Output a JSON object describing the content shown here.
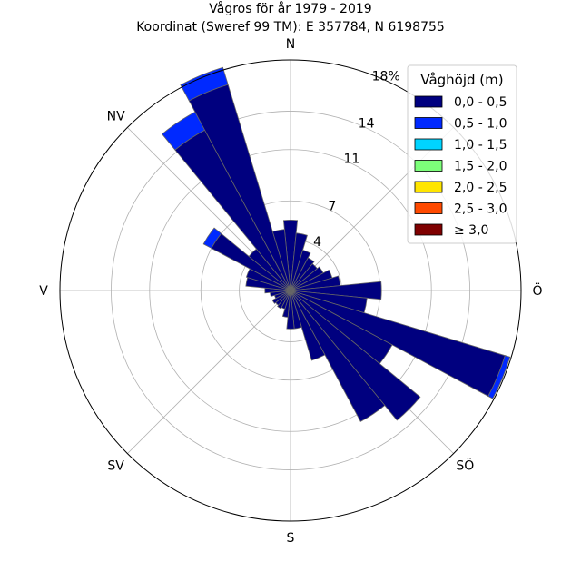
{
  "chart_data": {
    "type": "windrose",
    "title": "Vågros för år 1979 - 2019",
    "subtitle": "Koordinat (Sweref 99 TM): E 357784, N 6198755",
    "unit": "%",
    "rlim": [
      0,
      18
    ],
    "radial_ticks": [
      {
        "value": 4,
        "label": "4"
      },
      {
        "value": 7,
        "label": "7"
      },
      {
        "value": 11,
        "label": "11"
      },
      {
        "value": 14,
        "label": "14"
      },
      {
        "value": 18,
        "label": "18%"
      }
    ],
    "directions": [
      {
        "label": "N",
        "angle": 0
      },
      {
        "label": "NV",
        "angle": 315
      },
      {
        "label": "V",
        "angle": 270
      },
      {
        "label": "SV",
        "angle": 225
      },
      {
        "label": "S",
        "angle": 180
      },
      {
        "label": "SÖ",
        "angle": 135
      },
      {
        "label": "Ö",
        "angle": 90
      }
    ],
    "legend": {
      "title": "Våghöjd (m)",
      "placement": "top-right",
      "entries": [
        {
          "label": "0,0 - 0,5",
          "color": "#00007f"
        },
        {
          "label": "0,5 - 1,0",
          "color": "#0029ff"
        },
        {
          "label": "1,0 - 1,5",
          "color": "#00d4ff"
        },
        {
          "label": "1,5 - 2,0",
          "color": "#7dff7a"
        },
        {
          "label": "2,0 - 2,5",
          "color": "#ffe500"
        },
        {
          "label": "2,5 - 3,0",
          "color": "#ff4a00"
        },
        {
          "label": "≥ 3,0",
          "color": "#7f0000"
        }
      ]
    },
    "sector_width_deg": 11.25,
    "sectors": [
      {
        "direction_deg": 0,
        "bins": [
          5.5
        ]
      },
      {
        "direction_deg": 11.25,
        "bins": [
          4.5
        ]
      },
      {
        "direction_deg": 22.5,
        "bins": [
          3.3
        ]
      },
      {
        "direction_deg": 33.75,
        "bins": [
          2.9
        ]
      },
      {
        "direction_deg": 45,
        "bins": [
          2.7
        ]
      },
      {
        "direction_deg": 56.25,
        "bins": [
          2.9
        ]
      },
      {
        "direction_deg": 67.5,
        "bins": [
          3.4
        ]
      },
      {
        "direction_deg": 78.75,
        "bins": [
          3.9
        ]
      },
      {
        "direction_deg": 90,
        "bins": [
          7.1
        ]
      },
      {
        "direction_deg": 101.25,
        "bins": [
          6.0
        ]
      },
      {
        "direction_deg": 112.5,
        "bins": [
          17.5,
          0.4
        ]
      },
      {
        "direction_deg": 123.75,
        "bins": [
          9.0
        ]
      },
      {
        "direction_deg": 135,
        "bins": [
          13.1
        ]
      },
      {
        "direction_deg": 146.25,
        "bins": [
          11.6
        ]
      },
      {
        "direction_deg": 157.5,
        "bins": [
          5.7
        ]
      },
      {
        "direction_deg": 168.75,
        "bins": [
          3.0
        ]
      },
      {
        "direction_deg": 180,
        "bins": [
          3.0
        ]
      },
      {
        "direction_deg": 191.25,
        "bins": [
          2.1
        ]
      },
      {
        "direction_deg": 202.5,
        "bins": [
          1.5
        ]
      },
      {
        "direction_deg": 213.75,
        "bins": [
          1.6
        ]
      },
      {
        "direction_deg": 225,
        "bins": [
          1.5
        ]
      },
      {
        "direction_deg": 236.25,
        "bins": [
          1.6
        ]
      },
      {
        "direction_deg": 247.5,
        "bins": [
          1.3
        ]
      },
      {
        "direction_deg": 258.75,
        "bins": [
          1.6
        ]
      },
      {
        "direction_deg": 270,
        "bins": [
          2.0
        ]
      },
      {
        "direction_deg": 281.25,
        "bins": [
          3.5
        ]
      },
      {
        "direction_deg": 292.5,
        "bins": [
          3.6
        ]
      },
      {
        "direction_deg": 303.75,
        "bins": [
          7.0,
          0.7
        ]
      },
      {
        "direction_deg": 315,
        "bins": [
          4.2
        ]
      },
      {
        "direction_deg": 326.25,
        "bins": [
          14.2,
          1.6
        ]
      },
      {
        "direction_deg": 337.5,
        "bins": [
          16.8,
          1.4
        ]
      },
      {
        "direction_deg": 348.75,
        "bins": [
          4.8
        ]
      }
    ],
    "grid": true
  }
}
